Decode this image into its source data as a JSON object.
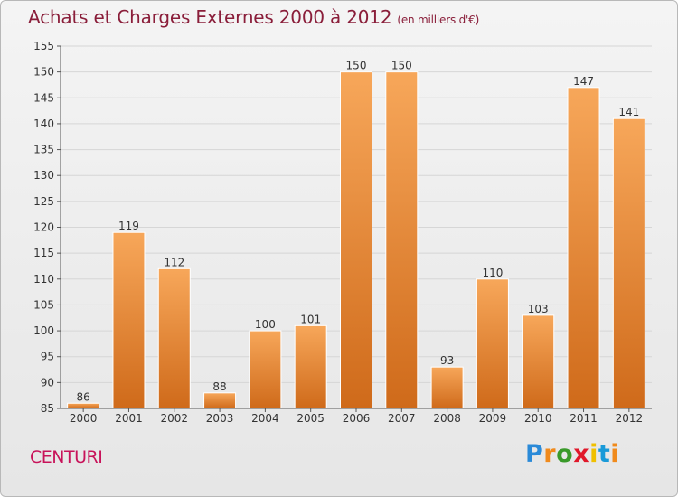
{
  "title": "Achats et Charges Externes 2000 à 2012",
  "subtitle": "(en milliers d'€)",
  "commune": "CENTURI",
  "logo": {
    "text": "Proxiti",
    "letters": [
      "P",
      "r",
      "o",
      "x",
      "i",
      "t",
      "i"
    ],
    "colors": [
      "#2a8ad8",
      "#f08a1c",
      "#3a9a2a",
      "#e0182a",
      "#f0c000",
      "#1a9ad8",
      "#f08a1c"
    ]
  },
  "colors": {
    "bar_light": "#f7a75a",
    "bar_dark": "#cf6a1a",
    "grid": "#d6d6d6",
    "axis": "#555555",
    "text": "#333333"
  },
  "chart_data": {
    "type": "bar",
    "categories": [
      "2000",
      "2001",
      "2002",
      "2003",
      "2004",
      "2005",
      "2006",
      "2007",
      "2008",
      "2009",
      "2010",
      "2011",
      "2012"
    ],
    "values": [
      86,
      119,
      112,
      88,
      100,
      101,
      150,
      150,
      93,
      110,
      103,
      147,
      141
    ],
    "data_labels": [
      "86",
      "119",
      "112",
      "88",
      "100",
      "101",
      "150",
      "150",
      "93",
      "110",
      "103",
      "147",
      "141"
    ],
    "ylim": [
      85,
      155
    ],
    "yticks": [
      85,
      90,
      95,
      100,
      105,
      110,
      115,
      120,
      125,
      130,
      135,
      140,
      145,
      150,
      155
    ],
    "ytick_labels": [
      "85",
      "90",
      "95",
      "100",
      "105",
      "110",
      "115",
      "120",
      "125",
      "130",
      "135",
      "140",
      "145",
      "150",
      "155"
    ],
    "grid": true,
    "legend": "none"
  }
}
